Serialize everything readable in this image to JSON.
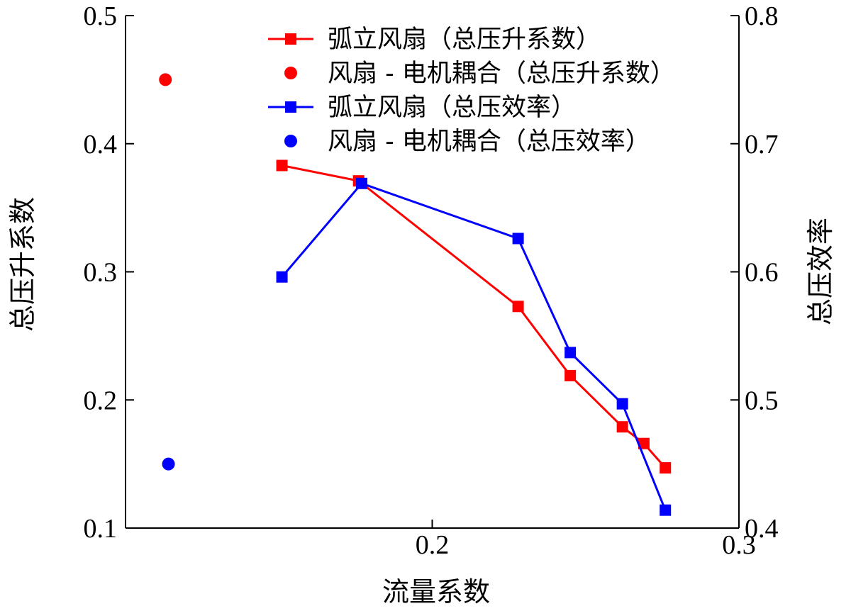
{
  "chart_data": {
    "type": "line",
    "xlabel": "流量系数",
    "ylabel_left": "总压升系数",
    "ylabel_right": "总压效率",
    "xlim": [
      0.1,
      0.3
    ],
    "ylim_left": [
      0.1,
      0.5
    ],
    "ylim_right": [
      0.4,
      0.8
    ],
    "x_ticks": [
      "0.2",
      "0.3"
    ],
    "x_tick_values": [
      0.2,
      0.3
    ],
    "y_left_ticks": [
      "0.1",
      "0.2",
      "0.3",
      "0.4",
      "0.5"
    ],
    "y_left_tick_values": [
      0.1,
      0.2,
      0.3,
      0.4,
      0.5
    ],
    "y_right_ticks": [
      "0.4",
      "0.5",
      "0.6",
      "0.7",
      "0.8"
    ],
    "y_right_tick_values": [
      0.4,
      0.5,
      0.6,
      0.7,
      0.8
    ],
    "grid": false,
    "legend_position": "top",
    "series": [
      {
        "name": "弧立风扇（总压升系数）",
        "axis": "left",
        "style": "line-square",
        "color": "#ff0000",
        "x": [
          0.151,
          0.176,
          0.228,
          0.245,
          0.262,
          0.269,
          0.276
        ],
        "y": [
          0.383,
          0.371,
          0.273,
          0.219,
          0.179,
          0.166,
          0.147
        ]
      },
      {
        "name": "风扇 - 电机耦合（总压升系数）",
        "axis": "left",
        "style": "marker-circle",
        "color": "#ff0000",
        "x": [
          0.113
        ],
        "y": [
          0.45
        ]
      },
      {
        "name": "弧立风扇（总压效率）",
        "axis": "right",
        "style": "line-square",
        "color": "#0000ff",
        "x": [
          0.151,
          0.177,
          0.228,
          0.245,
          0.262,
          0.276
        ],
        "y": [
          0.596,
          0.669,
          0.626,
          0.537,
          0.497,
          0.414
        ]
      },
      {
        "name": "风扇 - 电机耦合（总压效率）",
        "axis": "right",
        "style": "marker-circle",
        "color": "#0000ff",
        "x": [
          0.114
        ],
        "y": [
          0.45
        ]
      }
    ]
  }
}
